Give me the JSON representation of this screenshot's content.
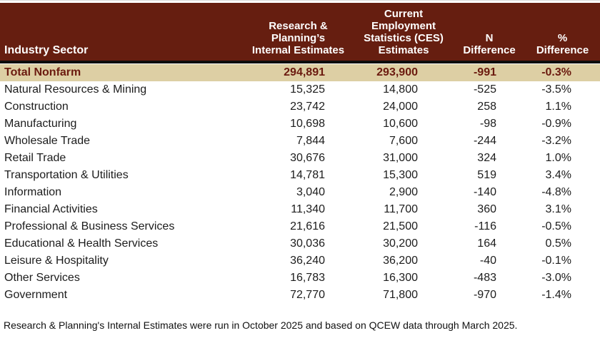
{
  "colors": {
    "header_bg": "#661E10",
    "header_text": "#FFFFFF",
    "total_row_bg": "#DDCFA4",
    "total_row_text": "#6B1A0F",
    "divider": "#0D0D0D",
    "body_text": "#1C1C1C"
  },
  "table": {
    "headers": {
      "sector": "Industry Sector",
      "internal_lines": [
        "Research &",
        "Planning’s",
        "Internal Estimates"
      ],
      "ces_lines": [
        "Current",
        "Employment",
        "Statistics (CES)",
        "Estimates"
      ],
      "n_diff_lines": [
        "N",
        "Difference"
      ],
      "pct_diff_lines": [
        "%",
        "Difference"
      ]
    },
    "rows": [
      {
        "sector": "Total Nonfarm",
        "internal": "294,891",
        "ces": "293,900",
        "n": "-991",
        "pct": "-0.3%",
        "emphasis": true
      },
      {
        "sector": "Natural Resources & Mining",
        "internal": "15,325",
        "ces": "14,800",
        "n": "-525",
        "pct": "-3.5%"
      },
      {
        "sector": "Construction",
        "internal": "23,742",
        "ces": "24,000",
        "n": "258",
        "pct": "1.1%"
      },
      {
        "sector": "Manufacturing",
        "internal": "10,698",
        "ces": "10,600",
        "n": "-98",
        "pct": "-0.9%"
      },
      {
        "sector": "Wholesale Trade",
        "internal": "7,844",
        "ces": "7,600",
        "n": "-244",
        "pct": "-3.2%"
      },
      {
        "sector": "Retail Trade",
        "internal": "30,676",
        "ces": "31,000",
        "n": "324",
        "pct": "1.0%"
      },
      {
        "sector": "Transportation & Utilities",
        "internal": "14,781",
        "ces": "15,300",
        "n": "519",
        "pct": "3.4%"
      },
      {
        "sector": "Information",
        "internal": "3,040",
        "ces": "2,900",
        "n": "-140",
        "pct": "-4.8%"
      },
      {
        "sector": "Financial Activities",
        "internal": "11,340",
        "ces": "11,700",
        "n": "360",
        "pct": "3.1%"
      },
      {
        "sector": "Professional & Business Services",
        "internal": "21,616",
        "ces": "21,500",
        "n": "-116",
        "pct": "-0.5%"
      },
      {
        "sector": "Educational & Health Services",
        "internal": "30,036",
        "ces": "30,200",
        "n": "164",
        "pct": "0.5%"
      },
      {
        "sector": "Leisure & Hospitality",
        "internal": "36,240",
        "ces": "36,200",
        "n": "-40",
        "pct": "-0.1%"
      },
      {
        "sector": "Other Services",
        "internal": "16,783",
        "ces": "16,300",
        "n": "-483",
        "pct": "-3.0%"
      },
      {
        "sector": "Government",
        "internal": "72,770",
        "ces": "71,800",
        "n": "-970",
        "pct": "-1.4%"
      }
    ],
    "footnote": "Research & Planning's Internal Estimates were run in October 2025 and based on QCEW data through March 2025."
  },
  "chart_data": {
    "type": "table",
    "title": "",
    "columns": [
      "Industry Sector",
      "Research & Planning's Internal Estimates",
      "Current Employment Statistics (CES) Estimates",
      "N Difference",
      "% Difference"
    ],
    "rows": [
      [
        "Total Nonfarm",
        294891,
        293900,
        -991,
        "-0.3%"
      ],
      [
        "Natural Resources & Mining",
        15325,
        14800,
        -525,
        "-3.5%"
      ],
      [
        "Construction",
        23742,
        24000,
        258,
        "1.1%"
      ],
      [
        "Manufacturing",
        10698,
        10600,
        -98,
        "-0.9%"
      ],
      [
        "Wholesale Trade",
        7844,
        7600,
        -244,
        "-3.2%"
      ],
      [
        "Retail Trade",
        30676,
        31000,
        324,
        "1.0%"
      ],
      [
        "Transportation & Utilities",
        14781,
        15300,
        519,
        "3.4%"
      ],
      [
        "Information",
        3040,
        2900,
        -140,
        "-4.8%"
      ],
      [
        "Financial Activities",
        11340,
        11700,
        360,
        "3.1%"
      ],
      [
        "Professional & Business Services",
        21616,
        21500,
        -116,
        "-0.5%"
      ],
      [
        "Educational & Health Services",
        30036,
        30200,
        164,
        "0.5%"
      ],
      [
        "Leisure & Hospitality",
        36240,
        36200,
        -40,
        "-0.1%"
      ],
      [
        "Other Services",
        16783,
        16300,
        -483,
        "-3.0%"
      ],
      [
        "Government",
        72770,
        71800,
        -970,
        "-1.4%"
      ]
    ],
    "footnote": "Research & Planning's Internal Estimates were run in October 2025 and based on QCEW data through March 2025."
  }
}
